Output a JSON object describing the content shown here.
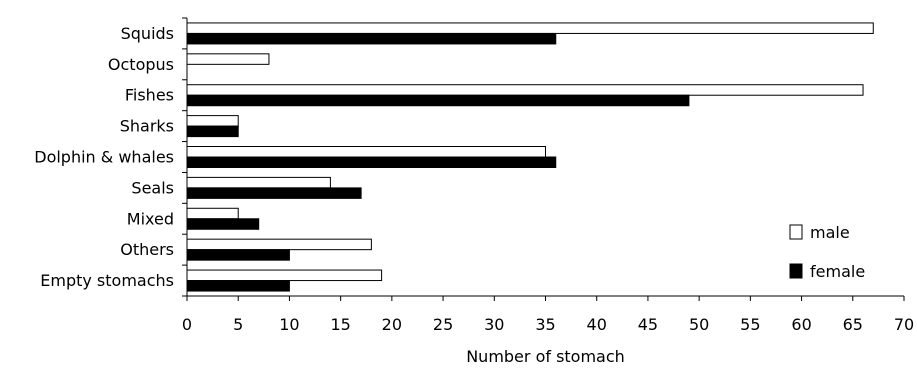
{
  "chart_data": {
    "type": "bar",
    "orientation": "horizontal",
    "categories": [
      "Squids",
      "Octopus",
      "Fishes",
      "Sharks",
      "Dolphin & whales",
      "Seals",
      "Mixed",
      "Others",
      "Empty stomachs"
    ],
    "series": [
      {
        "name": "male",
        "color": "#ffffff",
        "values": [
          67,
          8,
          66,
          5,
          35,
          14,
          5,
          18,
          19
        ]
      },
      {
        "name": "female",
        "color": "#000000",
        "values": [
          36,
          0,
          49,
          5,
          36,
          17,
          7,
          10,
          10
        ]
      }
    ],
    "xlabel": "Number of stomach",
    "ylabel": "",
    "xlim": [
      0,
      70
    ],
    "xticks": [
      0,
      5,
      10,
      15,
      20,
      25,
      30,
      35,
      40,
      45,
      50,
      55,
      60,
      65,
      70
    ],
    "grid": false,
    "legend_position": "right"
  }
}
